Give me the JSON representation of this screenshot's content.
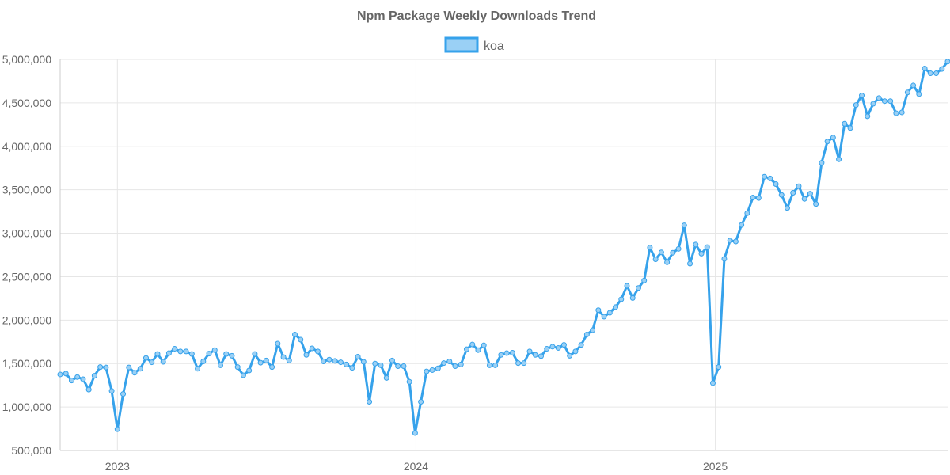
{
  "chart_data": {
    "type": "line",
    "title": "Npm Package Weekly Downloads Trend",
    "xlabel": "",
    "ylabel": "",
    "ylim": [
      500000,
      5000000
    ],
    "yticks": [
      500000,
      1000000,
      1500000,
      2000000,
      2500000,
      3000000,
      3500000,
      4000000,
      4500000,
      5000000
    ],
    "xticks": [
      "2023",
      "2024",
      "2025"
    ],
    "x_start": "2022-10-23",
    "x_step_days": 7,
    "legend_position": "top-center",
    "grid": true,
    "series": [
      {
        "name": "koa",
        "color": "#36a2eb",
        "fill": "#9ad0f5",
        "values": [
          1375000,
          1385000,
          1305000,
          1345000,
          1320000,
          1200000,
          1360000,
          1460000,
          1455000,
          1185000,
          745000,
          1150000,
          1455000,
          1395000,
          1440000,
          1565000,
          1515000,
          1610000,
          1520000,
          1620000,
          1670000,
          1640000,
          1640000,
          1610000,
          1440000,
          1525000,
          1615000,
          1655000,
          1480000,
          1610000,
          1590000,
          1460000,
          1365000,
          1420000,
          1610000,
          1510000,
          1535000,
          1460000,
          1730000,
          1575000,
          1535000,
          1835000,
          1775000,
          1600000,
          1675000,
          1640000,
          1525000,
          1545000,
          1530000,
          1515000,
          1490000,
          1450000,
          1580000,
          1520000,
          1060000,
          1500000,
          1480000,
          1335000,
          1535000,
          1470000,
          1470000,
          1290000,
          700000,
          1060000,
          1410000,
          1425000,
          1445000,
          1505000,
          1525000,
          1470000,
          1490000,
          1665000,
          1720000,
          1655000,
          1710000,
          1480000,
          1480000,
          1600000,
          1620000,
          1625000,
          1505000,
          1505000,
          1640000,
          1600000,
          1585000,
          1670000,
          1695000,
          1680000,
          1715000,
          1590000,
          1640000,
          1715000,
          1835000,
          1885000,
          2115000,
          2040000,
          2085000,
          2150000,
          2240000,
          2395000,
          2255000,
          2370000,
          2455000,
          2835000,
          2700000,
          2780000,
          2665000,
          2775000,
          2820000,
          3090000,
          2650000,
          2870000,
          2765000,
          2840000,
          1275000,
          1460000,
          2705000,
          2915000,
          2905000,
          3095000,
          3230000,
          3410000,
          3405000,
          3650000,
          3630000,
          3565000,
          3440000,
          3290000,
          3465000,
          3540000,
          3395000,
          3455000,
          3335000,
          3810000,
          4055000,
          4100000,
          3850000,
          4260000,
          4210000,
          4475000,
          4585000,
          4345000,
          4490000,
          4555000,
          4520000,
          4520000,
          4380000,
          4390000,
          4620000,
          4700000,
          4600000,
          4895000,
          4840000,
          4840000,
          4890000,
          4975000
        ]
      }
    ]
  }
}
